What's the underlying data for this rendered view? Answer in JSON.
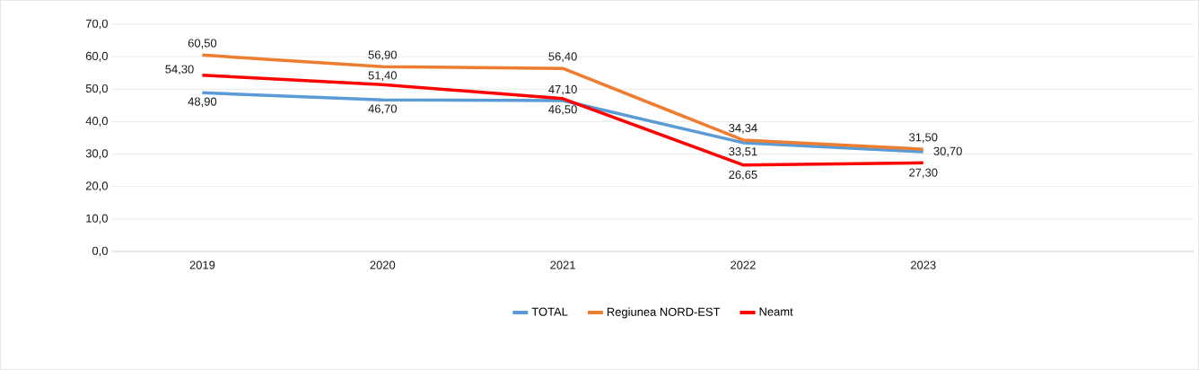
{
  "chart_data": {
    "type": "line",
    "categories": [
      "2019",
      "2020",
      "2021",
      "2022",
      "2023",
      null
    ],
    "series": [
      {
        "name": "TOTAL",
        "color": "#5b9bd5",
        "values": [
          48.9,
          46.7,
          46.5,
          33.51,
          30.7,
          null
        ],
        "value_labels": [
          "48,90",
          "46,70",
          "46,50",
          "33,51",
          "30,70",
          null
        ]
      },
      {
        "name": "Regiunea NORD-EST",
        "color": "#ed7d31",
        "values": [
          60.5,
          56.9,
          56.4,
          34.34,
          31.5,
          null
        ],
        "value_labels": [
          "60,50",
          "56,90",
          "56,40",
          "34,34",
          "31,50",
          null
        ]
      },
      {
        "name": "Neamt",
        "color": "#ff0000",
        "values": [
          54.3,
          51.4,
          47.1,
          26.65,
          27.3,
          null
        ],
        "value_labels": [
          "54,30",
          "51,40",
          "47,10",
          "26,65",
          "27,30",
          null
        ]
      }
    ],
    "ylim": [
      0,
      70
    ],
    "yticks": [
      {
        "value": 0,
        "label": "0,0"
      },
      {
        "value": 10,
        "label": "10,0"
      },
      {
        "value": 20,
        "label": "20,0"
      },
      {
        "value": 30,
        "label": "30,0"
      },
      {
        "value": 40,
        "label": "40,0"
      },
      {
        "value": 50,
        "label": "50,0"
      },
      {
        "value": 60,
        "label": "60,0"
      },
      {
        "value": 70,
        "label": "70,0"
      }
    ],
    "grid": "y",
    "legend": "bottom",
    "marker": "none",
    "line_style": "solid"
  }
}
